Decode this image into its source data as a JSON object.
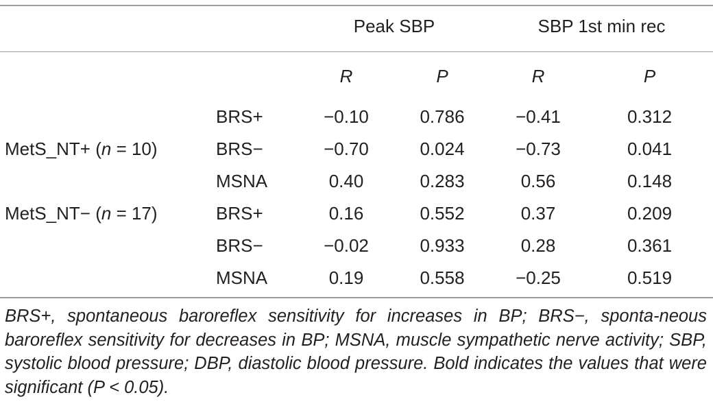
{
  "header": {
    "group_peak": "Peak SBP",
    "group_rec": "SBP 1st min rec",
    "sub_r": "R",
    "sub_p": "P"
  },
  "groups": [
    {
      "prefix": "MetS_NT+ (",
      "n_label": "n",
      "suffix": " = 10)",
      "rows": [
        {
          "var": "BRS+",
          "peak_r": "−0.10",
          "peak_p": "0.786",
          "rec_r": "−0.41",
          "rec_p": "0.312"
        },
        {
          "var": "BRS−",
          "peak_r": "−0.70",
          "peak_p": "0.024",
          "rec_r": "−0.73",
          "rec_p": "0.041"
        },
        {
          "var": "MSNA",
          "peak_r": "0.40",
          "peak_p": "0.283",
          "rec_r": "0.56",
          "rec_p": "0.148"
        }
      ]
    },
    {
      "prefix": "MetS_NT− (",
      "n_label": "n",
      "suffix": " = 17)",
      "rows": [
        {
          "var": "BRS+",
          "peak_r": "0.16",
          "peak_p": "0.552",
          "rec_r": "0.37",
          "rec_p": "0.209"
        },
        {
          "var": "BRS−",
          "peak_r": "−0.02",
          "peak_p": "0.933",
          "rec_r": "0.28",
          "rec_p": "0.361"
        },
        {
          "var": "MSNA",
          "peak_r": "0.19",
          "peak_p": "0.558",
          "rec_r": "−0.25",
          "rec_p": "0.519"
        }
      ]
    }
  ],
  "footnote": "BRS+, spontaneous baroreflex sensitivity for increases in BP; BRS−, sponta-neous baroreflex sensitivity for decreases in BP; MSNA, muscle sympathetic nerve activity; SBP, systolic blood pressure; DBP, diastolic blood pressure. Bold indicates the values that were significant (P < 0.05)."
}
